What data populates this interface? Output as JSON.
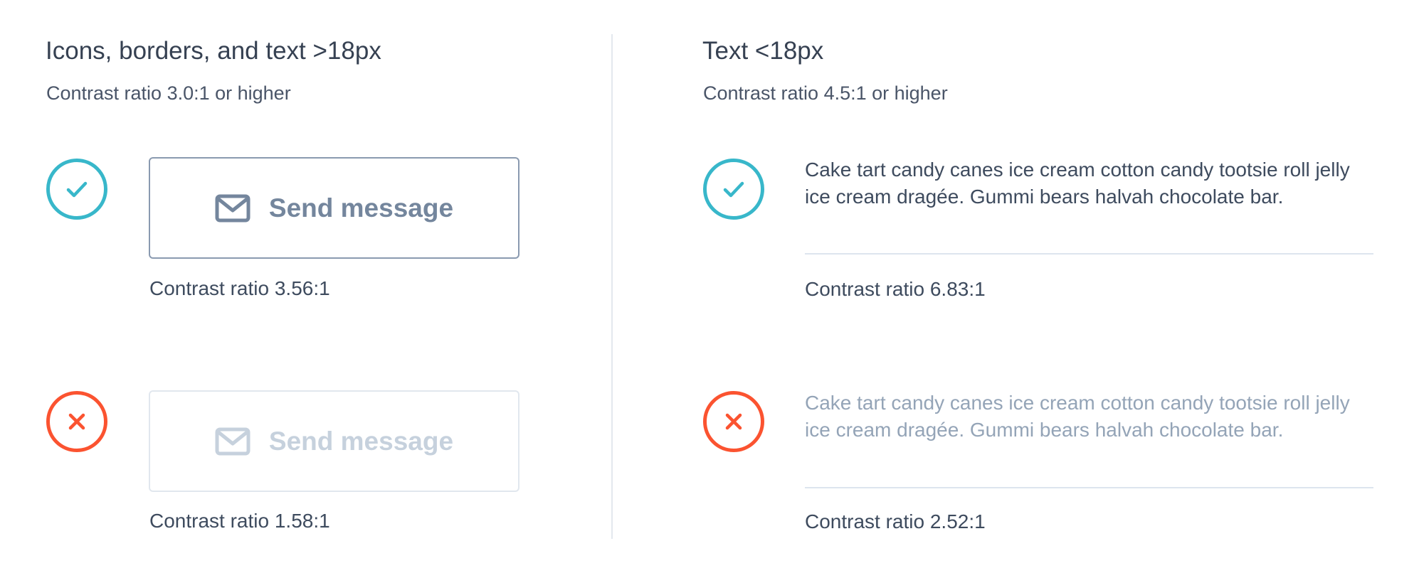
{
  "left": {
    "heading": "Icons, borders, and text >18px",
    "subheading": "Contrast ratio 3.0:1 or higher",
    "examples": [
      {
        "status": "pass",
        "status_icon": "check-icon",
        "button_icon": "envelope-icon",
        "button_label": "Send message",
        "caption": "Contrast ratio 3.56:1",
        "color": "#74869d"
      },
      {
        "status": "fail",
        "status_icon": "x-icon",
        "button_icon": "envelope-icon",
        "button_label": "Send message",
        "caption": "Contrast ratio 1.58:1",
        "color": "#c6d1dd"
      }
    ]
  },
  "right": {
    "heading": "Text <18px",
    "subheading": "Contrast ratio 4.5:1 or higher",
    "examples": [
      {
        "status": "pass",
        "status_icon": "check-icon",
        "text": "Cake tart candy canes ice cream cotton candy tootsie roll jelly ice cream dragée. Gummi bears halvah chocolate bar.",
        "caption": "Contrast ratio 6.83:1",
        "color": "#3e4b5e"
      },
      {
        "status": "fail",
        "status_icon": "x-icon",
        "text": "Cake tart candy canes ice cream cotton candy tootsie roll jelly ice cream dragée. Gummi bears halvah chocolate bar.",
        "caption": "Contrast ratio 2.52:1",
        "color": "#94a4b7"
      }
    ]
  },
  "colors": {
    "pass": "#38b7ca",
    "fail": "#fb5330"
  }
}
